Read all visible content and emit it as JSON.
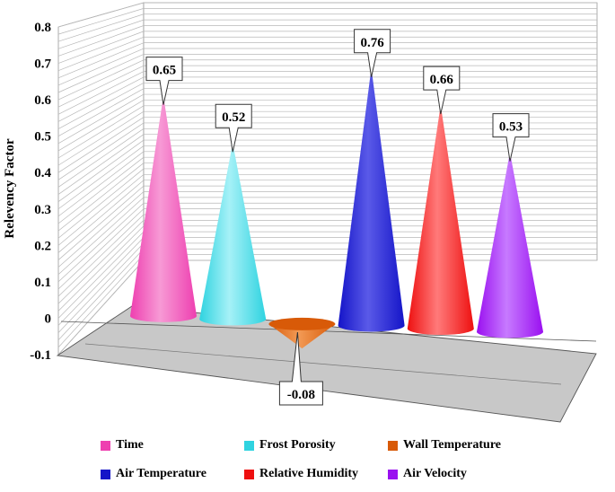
{
  "chart_data": {
    "type": "bar",
    "ylabel": "Relevency Factor",
    "ylim": [
      -0.1,
      0.8
    ],
    "yticks": [
      "0.8",
      "0.7",
      "0.6",
      "0.5",
      "0.4",
      "0.3",
      "0.2",
      "0.1",
      "0",
      "-0.1"
    ],
    "grid": true,
    "legend_position": "bottom",
    "categories": [
      "Time",
      "Frost Porosity",
      "Wall Temperature",
      "Air Temperature",
      "Relative Humidity",
      "Air Velocity"
    ],
    "values": [
      0.65,
      0.52,
      -0.08,
      0.76,
      0.66,
      0.53
    ],
    "data_labels": [
      "0.65",
      "0.52",
      "-0.08",
      "0.76",
      "0.66",
      "0.53"
    ],
    "colors": [
      "#ee3fb0",
      "#2fd3e0",
      "#d85a08",
      "#1414c8",
      "#ee1010",
      "#9a10f0"
    ],
    "shading": [
      "#f79ad5",
      "#a6f1f7",
      "#f29a55",
      "#5a5ae8",
      "#ff7a7a",
      "#c77aff"
    ]
  }
}
